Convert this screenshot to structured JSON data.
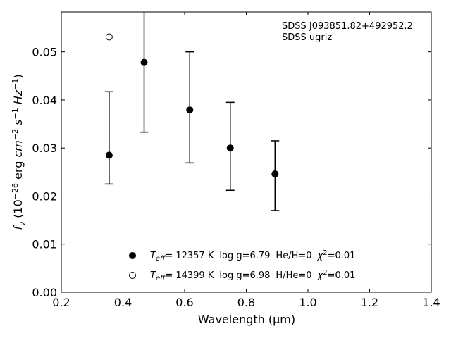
{
  "chart_data": {
    "type": "scatter",
    "xlabel": "Wavelength (μm)",
    "ylabel": "f_ν (10^−26 erg cm^−2 s^−1 Hz^−1)",
    "xlim": [
      0.2,
      1.4
    ],
    "ylim": [
      0.0,
      0.0583
    ],
    "xticks": [
      "0.2",
      "0.4",
      "0.6",
      "0.8",
      "1.0",
      "1.2",
      "1.4"
    ],
    "yticks": [
      "0.00",
      "0.01",
      "0.02",
      "0.03",
      "0.04",
      "0.05"
    ],
    "grid": false,
    "annotations": [
      "SDSS J093851.82+492952.2",
      "SDSS ugriz"
    ],
    "legend_position": "lower-center",
    "series": [
      {
        "marker": "filled-circle",
        "label": {
          "teff": "= 12357 K",
          "logg": "log g=6.79",
          "comp": "He/H=0",
          "chi": "=0.01"
        },
        "x": [
          0.3551,
          0.4686,
          0.6166,
          0.748,
          0.8932
        ],
        "y": [
          0.0285,
          0.0478,
          0.0379,
          0.03,
          0.0246
        ],
        "err_low": [
          0.006,
          0.0145,
          0.011,
          0.0088,
          0.0076
        ],
        "err_high": [
          0.0132,
          0.011,
          0.0121,
          0.0095,
          0.0069
        ]
      },
      {
        "marker": "open-circle",
        "label": {
          "teff": "= 14399 K",
          "logg": "log g=6.98",
          "comp": "H/He=0",
          "chi": "=0.01"
        },
        "x": [
          0.3551
        ],
        "y": [
          0.0531
        ]
      }
    ]
  }
}
